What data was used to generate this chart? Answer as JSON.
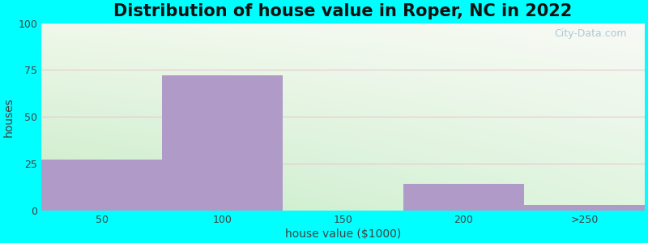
{
  "title": "Distribution of house value in Roper, NC in 2022",
  "xlabel": "house value ($1000)",
  "ylabel": "houses",
  "bar_labels": [
    "50",
    "100",
    "150",
    "200",
    ">250"
  ],
  "bar_values": [
    27,
    72,
    0,
    14,
    3
  ],
  "bar_color": "#b09ac8",
  "ylim": [
    0,
    100
  ],
  "yticks": [
    0,
    25,
    50,
    75,
    100
  ],
  "bg_outer": "#00FFFF",
  "bg_grad_topleft": "#e8f5e2",
  "bg_grad_topright": "#f8faf5",
  "bg_grad_bottomleft": "#d0edd0",
  "bg_grad_bottomright": "#e8f5ea",
  "grid_color": "#e8c8d0",
  "watermark": "City-Data.com",
  "title_fontsize": 15,
  "label_fontsize": 10,
  "tick_fontsize": 9,
  "bar_width": 1.0,
  "figsize": [
    8.0,
    3.0
  ],
  "dpi": 100
}
